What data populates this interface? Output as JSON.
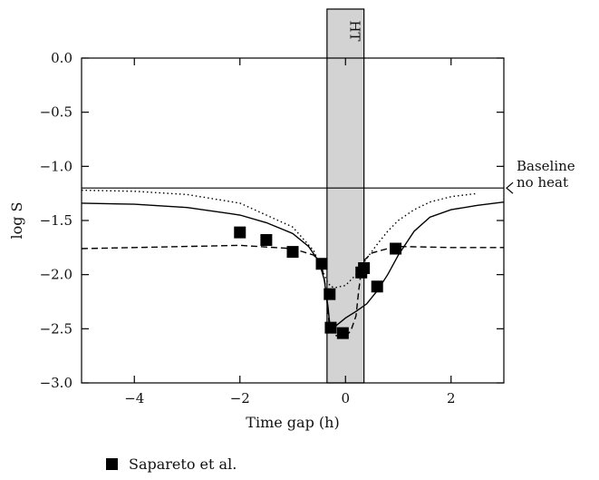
{
  "chart_data": {
    "type": "line",
    "title": "",
    "xlabel": "Time gap (h)",
    "ylabel": "log S",
    "xlim": [
      -5,
      3
    ],
    "ylim": [
      -3.0,
      0.0
    ],
    "xticks": [
      -4,
      -2,
      0,
      2
    ],
    "xtick_labels": [
      "−4",
      "−2",
      "0",
      "2"
    ],
    "yticks": [
      0.0,
      -0.5,
      -1.0,
      -1.5,
      -2.0,
      -2.5,
      -3.0
    ],
    "ytick_labels": [
      "0.0",
      "−0.5",
      "−1.0",
      "−1.5",
      "−2.0",
      "−2.5",
      "−3.0"
    ],
    "grid": false,
    "shaded_band": {
      "label": "HT",
      "x_range": [
        -0.35,
        0.35
      ],
      "color": "#d3d3d3"
    },
    "baseline": {
      "y": -1.2,
      "label_line1": "Baseline",
      "label_line2": "no heat"
    },
    "scatter": {
      "name": "Sapareto et al.",
      "x": [
        -2.0,
        -1.5,
        -1.0,
        -0.45,
        -0.3,
        -0.28,
        -0.05,
        0.3,
        0.35,
        0.6,
        0.95
      ],
      "y": [
        -1.61,
        -1.68,
        -1.79,
        -1.9,
        -2.18,
        -2.49,
        -2.54,
        -1.98,
        -1.94,
        -2.11,
        -1.76
      ]
    },
    "curves": [
      {
        "style": "solid",
        "x": [
          -5.0,
          -4.0,
          -3.0,
          -2.0,
          -1.5,
          -1.0,
          -0.7,
          -0.5,
          -0.4,
          -0.33,
          -0.3,
          -0.25,
          -0.2,
          0.0,
          0.2,
          0.4,
          0.6,
          0.8,
          1.0,
          1.3,
          1.6,
          2.0,
          2.5,
          3.0
        ],
        "y": [
          -1.34,
          -1.35,
          -1.38,
          -1.45,
          -1.52,
          -1.62,
          -1.74,
          -1.88,
          -2.05,
          -2.3,
          -2.45,
          -2.5,
          -2.48,
          -2.4,
          -2.34,
          -2.27,
          -2.15,
          -2.0,
          -1.82,
          -1.6,
          -1.47,
          -1.4,
          -1.36,
          -1.33
        ]
      },
      {
        "style": "dashed",
        "x": [
          -5.0,
          -4.0,
          -3.0,
          -2.0,
          -1.0,
          -0.6,
          -0.45,
          -0.38,
          -0.33,
          -0.3,
          -0.2,
          -0.1,
          0.0,
          0.1,
          0.2,
          0.25,
          0.3,
          0.35,
          0.5,
          0.8,
          1.0,
          2.0,
          3.0
        ],
        "y": [
          -1.76,
          -1.75,
          -1.74,
          -1.73,
          -1.76,
          -1.82,
          -1.92,
          -2.1,
          -2.35,
          -2.5,
          -2.56,
          -2.57,
          -2.57,
          -2.52,
          -2.38,
          -2.15,
          -1.96,
          -1.87,
          -1.8,
          -1.76,
          -1.74,
          -1.75,
          -1.75
        ]
      },
      {
        "style": "dotted",
        "x": [
          -5.0,
          -4.0,
          -3.0,
          -2.0,
          -1.0,
          -0.6,
          -0.45,
          -0.35,
          -0.28,
          -0.2,
          0.0,
          0.2,
          0.3,
          0.4,
          0.6,
          0.8,
          1.0,
          1.3,
          1.6,
          2.0,
          2.5
        ],
        "y": [
          -1.22,
          -1.23,
          -1.26,
          -1.34,
          -1.56,
          -1.78,
          -1.95,
          -2.06,
          -2.11,
          -2.12,
          -2.1,
          -2.0,
          -1.93,
          -1.85,
          -1.72,
          -1.6,
          -1.5,
          -1.4,
          -1.33,
          -1.28,
          -1.25
        ]
      }
    ]
  },
  "legend": {
    "label": "Sapareto et al."
  }
}
